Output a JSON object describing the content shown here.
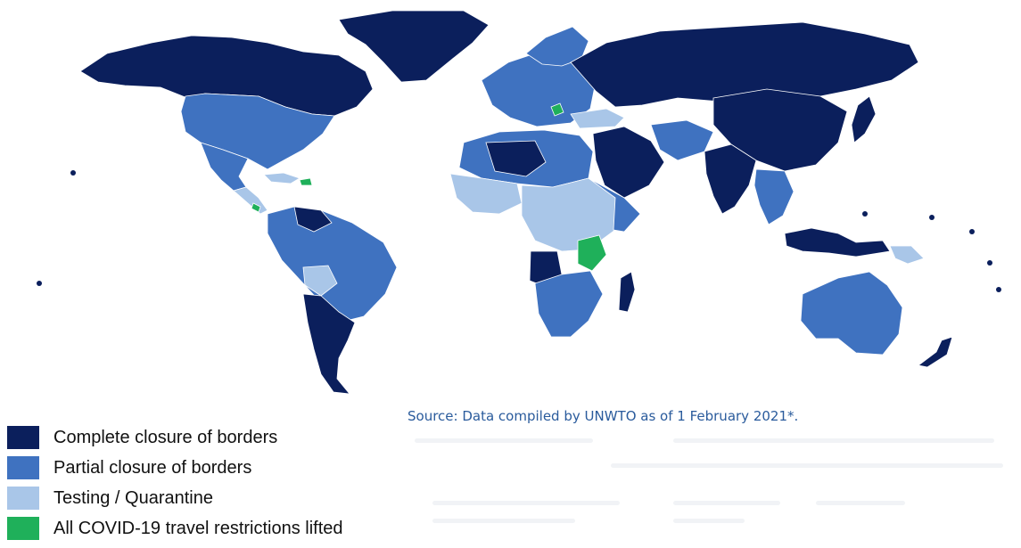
{
  "map": {
    "colors": {
      "complete": "#0b1f5c",
      "partial": "#3f72c0",
      "testing": "#a9c6e8",
      "lifted": "#1fb05a"
    },
    "regions": [
      {
        "name": "North America",
        "status": "complete"
      },
      {
        "name": "United States",
        "status": "partial"
      },
      {
        "name": "Mexico",
        "status": "partial"
      },
      {
        "name": "Central America",
        "status": "testing"
      },
      {
        "name": "South America (north)",
        "status": "partial"
      },
      {
        "name": "Venezuela",
        "status": "complete"
      },
      {
        "name": "Bolivia",
        "status": "testing"
      },
      {
        "name": "Chile / Argentina",
        "status": "complete"
      },
      {
        "name": "Greenland",
        "status": "complete"
      },
      {
        "name": "Western Europe",
        "status": "partial"
      },
      {
        "name": "Russia",
        "status": "complete"
      },
      {
        "name": "Middle East",
        "status": "complete"
      },
      {
        "name": "Iran",
        "status": "partial"
      },
      {
        "name": "China / Mongolia",
        "status": "complete"
      },
      {
        "name": "India",
        "status": "complete"
      },
      {
        "name": "Southeast Asia",
        "status": "partial"
      },
      {
        "name": "Japan",
        "status": "complete"
      },
      {
        "name": "Indonesia",
        "status": "complete"
      },
      {
        "name": "North Africa",
        "status": "partial"
      },
      {
        "name": "West Africa",
        "status": "testing"
      },
      {
        "name": "Central Africa",
        "status": "testing"
      },
      {
        "name": "East Africa",
        "status": "partial"
      },
      {
        "name": "Tanzania",
        "status": "lifted"
      },
      {
        "name": "Angola",
        "status": "complete"
      },
      {
        "name": "Southern Africa",
        "status": "partial"
      },
      {
        "name": "Madagascar",
        "status": "complete"
      },
      {
        "name": "Australia",
        "status": "partial"
      },
      {
        "name": "New Zealand",
        "status": "complete"
      },
      {
        "name": "Papua New Guinea",
        "status": "testing"
      }
    ]
  },
  "source_text": "Source: Data compiled by UNWTO as of 1 February 2021*.",
  "legend": [
    {
      "label": "Complete closure of borders",
      "color": "#0b1f5c"
    },
    {
      "label": "Partial closure of borders",
      "color": "#3f72c0"
    },
    {
      "label": "Testing / Quarantine",
      "color": "#a9c6e8"
    },
    {
      "label": "All COVID-19 travel restrictions lifted",
      "color": "#1fb05a"
    }
  ]
}
